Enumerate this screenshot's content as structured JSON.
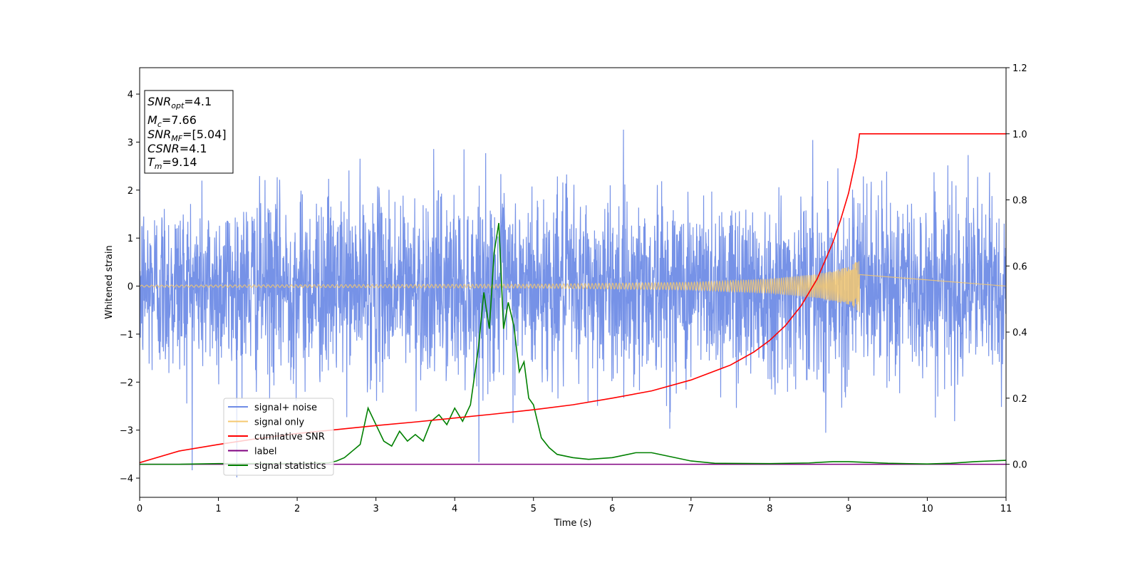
{
  "chart_data": {
    "type": "line",
    "xlabel": "Time (s)",
    "ylabel": "Whitened strain",
    "xlim": [
      0,
      11
    ],
    "ylim": [
      -4.4,
      4.55
    ],
    "y2lim": [
      -0.1,
      1.2
    ],
    "xticks": [
      "0",
      "1",
      "2",
      "3",
      "4",
      "5",
      "6",
      "7",
      "8",
      "9",
      "10",
      "11"
    ],
    "yticks": [
      "−4",
      "−3",
      "−2",
      "−1",
      "0",
      "1",
      "2",
      "3",
      "4"
    ],
    "y2ticks": [
      "0.0",
      "0.2",
      "0.4",
      "0.6",
      "0.8",
      "1.0",
      "1.2"
    ],
    "grid": false,
    "legend_position": "lower-left",
    "info_box": {
      "lines": [
        {
          "symbol": "SNR",
          "sub": "opt",
          "value": "=4.1"
        },
        {
          "symbol": "M",
          "sub": "c",
          "value": "=7.66"
        },
        {
          "symbol": "SNR",
          "sub": "MF",
          "value": "=[5.04]"
        },
        {
          "symbol": "CSNR",
          "sub": "",
          "value": "=4.1"
        },
        {
          "symbol": "T",
          "sub": "m",
          "value": "=9.14"
        }
      ]
    },
    "series": [
      {
        "name": "signal+ noise",
        "color": "#6f8ce6",
        "axis": "left",
        "description": "whitened noisy strain, roughly Gaussian, amplitude about ±2.5 with spikes up to ±4",
        "amplitude_range": [
          -4.0,
          4.2
        ]
      },
      {
        "name": "signal only",
        "color": "#f5c870",
        "axis": "left",
        "chirp_end": 9.14,
        "envelope": [
          [
            0,
            0.02
          ],
          [
            5,
            0.04
          ],
          [
            7,
            0.08
          ],
          [
            8,
            0.15
          ],
          [
            8.6,
            0.25
          ],
          [
            9.0,
            0.4
          ],
          [
            9.14,
            0.55
          ]
        ]
      },
      {
        "name": "cumilative SNR",
        "color": "#ff0000",
        "axis": "right",
        "x": [
          0,
          0.5,
          1,
          1.5,
          2,
          2.5,
          3,
          3.5,
          4,
          4.5,
          5,
          5.5,
          6,
          6.5,
          7,
          7.5,
          7.8,
          8.0,
          8.2,
          8.4,
          8.6,
          8.8,
          8.9,
          9.0,
          9.1,
          9.14,
          11
        ],
        "values": [
          0.005,
          0.04,
          0.06,
          0.078,
          0.093,
          0.105,
          0.117,
          0.128,
          0.14,
          0.152,
          0.165,
          0.18,
          0.2,
          0.222,
          0.255,
          0.3,
          0.34,
          0.375,
          0.42,
          0.48,
          0.56,
          0.67,
          0.74,
          0.82,
          0.93,
          1.0,
          1.0
        ]
      },
      {
        "name": "label",
        "color": "#800080",
        "axis": "right",
        "x": [
          0,
          11
        ],
        "values": [
          0,
          0
        ]
      },
      {
        "name": "signal statistics",
        "color": "#008000",
        "axis": "right",
        "x": [
          0,
          0.5,
          1,
          1.5,
          2,
          2.2,
          2.4,
          2.5,
          2.6,
          2.7,
          2.8,
          2.9,
          3.0,
          3.1,
          3.2,
          3.3,
          3.4,
          3.5,
          3.6,
          3.7,
          3.8,
          3.9,
          4.0,
          4.1,
          4.2,
          4.3,
          4.37,
          4.44,
          4.5,
          4.56,
          4.62,
          4.68,
          4.75,
          4.82,
          4.88,
          4.94,
          5.0,
          5.1,
          5.2,
          5.3,
          5.5,
          5.7,
          6.0,
          6.3,
          6.5,
          6.7,
          7.0,
          7.3,
          8.0,
          8.5,
          8.8,
          9.0,
          9.5,
          10.0,
          10.3,
          10.6,
          11
        ],
        "values": [
          0.0,
          0.0,
          0.002,
          0.002,
          0.002,
          0.003,
          0.004,
          0.01,
          0.02,
          0.04,
          0.06,
          0.17,
          0.12,
          0.07,
          0.055,
          0.1,
          0.07,
          0.09,
          0.07,
          0.13,
          0.15,
          0.12,
          0.17,
          0.13,
          0.18,
          0.35,
          0.52,
          0.41,
          0.64,
          0.73,
          0.41,
          0.49,
          0.42,
          0.28,
          0.31,
          0.2,
          0.18,
          0.08,
          0.05,
          0.03,
          0.02,
          0.015,
          0.02,
          0.035,
          0.035,
          0.025,
          0.01,
          0.003,
          0.002,
          0.004,
          0.008,
          0.008,
          0.003,
          0.001,
          0.003,
          0.008,
          0.012
        ]
      }
    ]
  }
}
